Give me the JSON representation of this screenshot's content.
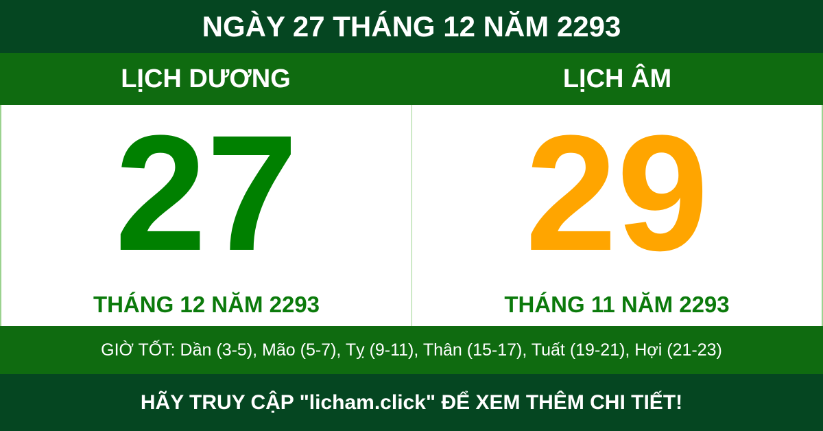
{
  "title": "NGÀY 27 THÁNG 12 NĂM 2293",
  "solar": {
    "heading": "LỊCH DƯƠNG",
    "day": "27",
    "month_year": "THÁNG 12 NĂM 2293"
  },
  "lunar": {
    "heading": "LỊCH ÂM",
    "day": "29",
    "month_year": "THÁNG 11 NĂM 2293"
  },
  "good_hours": "GIỜ TỐT: Dần (3-5), Mão (5-7), Tỵ (9-11), Thân (15-17), Tuất (19-21), Hợi (21-23)",
  "footer": "HÃY TRUY CẬP \"licham.click\" ĐỂ XEM THÊM CHI TIẾT!",
  "colors": {
    "dark_green": "#054621",
    "band_green": "#0f6b10",
    "solar_number": "#008000",
    "lunar_number": "#ffa500"
  }
}
